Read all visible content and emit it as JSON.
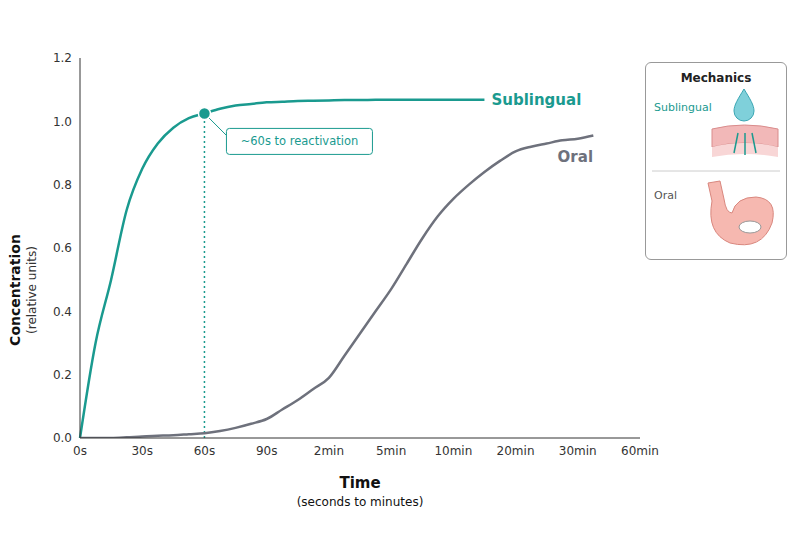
{
  "chart_data": {
    "type": "line",
    "categories": [
      "0s",
      null,
      null,
      null,
      "30s",
      null,
      null,
      null,
      "60s",
      null,
      null,
      null,
      "90s",
      null,
      null,
      null,
      "2min",
      null,
      null,
      null,
      "5min",
      null,
      null,
      null,
      "10min",
      null,
      null,
      null,
      "20min",
      null,
      null,
      null,
      "30min",
      null,
      null,
      null,
      "60min"
    ],
    "series": [
      {
        "name": "Sublingual",
        "color": "#1a9a8f",
        "values": [
          0,
          0.3,
          0.5,
          0.72,
          0.85,
          0.93,
          0.98,
          1.01,
          1.025,
          1.04,
          1.05,
          1.055,
          1.06,
          1.062,
          1.064,
          1.065,
          1.066,
          1.067,
          1.067,
          1.068,
          1.068,
          1.068,
          1.068,
          1.068,
          1.068,
          1.068,
          1.068,
          null,
          null,
          null,
          null,
          null,
          null,
          null,
          null,
          null,
          null
        ]
      },
      {
        "name": "Oral",
        "color": "#6e717c",
        "values": [
          0,
          0,
          0,
          0.002,
          0.005,
          0.007,
          0.009,
          0.012,
          0.015,
          0.022,
          0.032,
          0.045,
          0.06,
          0.09,
          0.12,
          0.155,
          0.19,
          0.26,
          0.33,
          0.4,
          0.47,
          0.55,
          0.63,
          0.7,
          0.755,
          0.8,
          0.84,
          0.875,
          0.905,
          0.92,
          0.93,
          0.94,
          0.945,
          0.955,
          null,
          null,
          null
        ]
      }
    ],
    "ylim": [
      0,
      1.2
    ],
    "yticks": [
      {
        "value": 0,
        "label": "0.0"
      },
      0.2,
      0.4,
      0.6,
      0.8,
      {
        "value": 1,
        "label": "1.0"
      },
      1.2
    ],
    "x_label": "Time",
    "x_sublabel": "(seconds to minutes)",
    "y_label": "Concentration",
    "y_sublabel": "(relative units)",
    "annotation": {
      "text": "~60s to reactivation",
      "x": "60s",
      "y": 1.025
    },
    "inset": {
      "title": "Mechanics",
      "labels": [
        "Sublingual",
        "Oral"
      ]
    },
    "grid": false
  }
}
